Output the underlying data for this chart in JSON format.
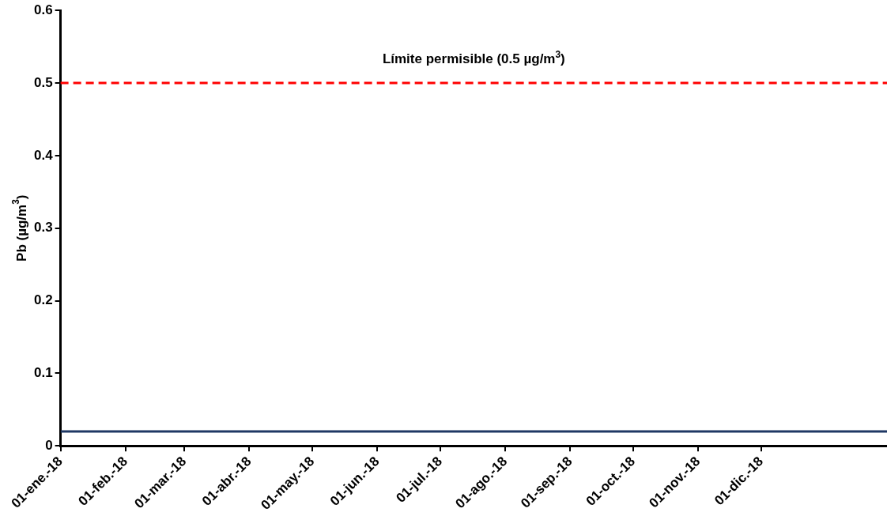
{
  "chart_data": {
    "type": "line",
    "ylabel": "Pb (µg/m$^{3}$)",
    "x": [
      "2018-01-01",
      "2019-01-30"
    ],
    "series": [
      {
        "color": "#1f3864",
        "values": [
          0.02,
          0.02
        ]
      }
    ],
    "xlim": [
      "2018-01-01",
      "2019-01-30"
    ],
    "xticks": [
      {
        "value": "2018-01-01",
        "label": "01-ene.-18"
      },
      {
        "value": "2018-02-01",
        "label": "01-feb.-18"
      },
      {
        "value": "2018-03-01",
        "label": "01-mar.-18"
      },
      {
        "value": "2018-04-01",
        "label": "01-abr.-18"
      },
      {
        "value": "2018-05-01",
        "label": "01-may.-18"
      },
      {
        "value": "2018-06-01",
        "label": "01-jun.-18"
      },
      {
        "value": "2018-07-01",
        "label": "01-jul.-18"
      },
      {
        "value": "2018-08-01",
        "label": "01-ago.-18"
      },
      {
        "value": "2018-09-01",
        "label": "01-sep.-18"
      },
      {
        "value": "2018-10-01",
        "label": "01-oct.-18"
      },
      {
        "value": "2018-11-01",
        "label": "01-nov.-18"
      },
      {
        "value": "2018-12-01",
        "label": "01-dic.-18"
      }
    ],
    "ylim": [
      0,
      0.6
    ],
    "yticks": [
      0,
      0.1,
      0.2,
      0.3,
      0.4,
      0.5,
      0.6
    ],
    "ref_lines": [
      {
        "axis": "y",
        "value": 0.5,
        "label": "Límite permisible (0.5 µg/m$^{3}$)",
        "color": "#ff0000",
        "line_style": "dashed"
      }
    ],
    "grid": false,
    "legend": false,
    "marker": "none",
    "line_style": "solid"
  }
}
